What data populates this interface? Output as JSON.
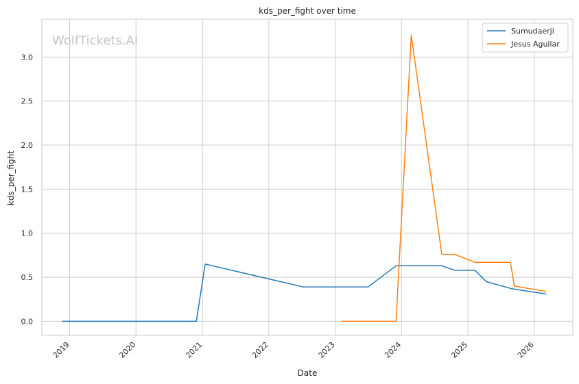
{
  "watermark": "WolfTickets.AI",
  "chart_data": {
    "type": "line",
    "title": "kds_per_fight over time",
    "xlabel": "Date",
    "ylabel": "kds_per_fight",
    "xlim": [
      "2018-08-01",
      "2026-08-01"
    ],
    "ylim": [
      -0.16,
      3.43
    ],
    "x_ticks": [
      "2019-01-01",
      "2020-01-01",
      "2021-01-01",
      "2022-01-01",
      "2023-01-01",
      "2024-01-01",
      "2025-01-01",
      "2026-01-01"
    ],
    "x_tick_labels": [
      "2019",
      "2020",
      "2021",
      "2022",
      "2023",
      "2024",
      "2025",
      "2026"
    ],
    "y_ticks": [
      0.0,
      0.5,
      1.0,
      1.5,
      2.0,
      2.5,
      3.0
    ],
    "y_tick_labels": [
      "0.0",
      "0.5",
      "1.0",
      "1.5",
      "2.0",
      "2.5",
      "3.0"
    ],
    "grid": true,
    "legend_position": "top-right",
    "series": [
      {
        "name": "Sumudaerji",
        "color": "#1f77b4",
        "x": [
          "2018-11-20",
          "2020-11-28",
          "2021-01-16",
          "2022-07-09",
          "2023-07-01",
          "2023-12-02",
          "2024-08-10",
          "2024-10-19",
          "2025-02-08",
          "2025-04-12",
          "2025-08-30",
          "2026-03-07"
        ],
        "y": [
          0.0,
          0.0,
          0.65,
          0.39,
          0.39,
          0.63,
          0.63,
          0.58,
          0.58,
          0.45,
          0.37,
          0.31
        ]
      },
      {
        "name": "Jesus Aguilar",
        "color": "#ff7f0e",
        "x": [
          "2023-02-04",
          "2023-12-02",
          "2024-02-24",
          "2024-08-10",
          "2024-10-19",
          "2025-02-08",
          "2025-08-23",
          "2025-09-13",
          "2026-03-07"
        ],
        "y": [
          0.0,
          0.0,
          3.25,
          0.76,
          0.76,
          0.67,
          0.67,
          0.4,
          0.34
        ]
      }
    ]
  }
}
